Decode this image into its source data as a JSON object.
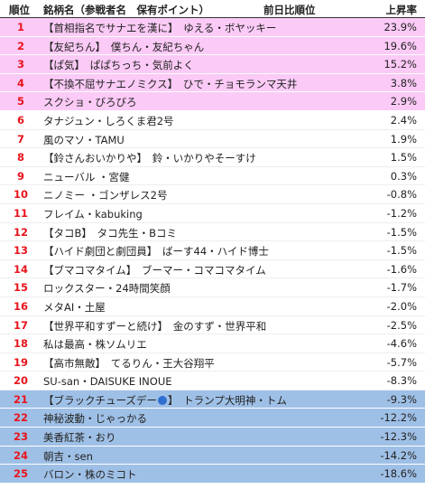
{
  "header": {
    "rank": "順位",
    "name": "銘柄名（参戦者名　保有ポイント）",
    "prev": "前日比順位",
    "change": "上昇率"
  },
  "rows": [
    {
      "rank": "1",
      "name": "【首相指名でサナエを漢に】　ゆえる・ボヤッキー",
      "change": "23.9%"
    },
    {
      "rank": "2",
      "name": "【友紀ちん】　僕ちん・友紀ちゃん",
      "change": "19.6%"
    },
    {
      "rank": "3",
      "name": "【ぱ気】　ぱぱちっち・気前よく",
      "change": "15.2%"
    },
    {
      "rank": "4",
      "name": "【不換不屈サナエノミクス】　ひで・チョモランマ天井",
      "change": "3.8%"
    },
    {
      "rank": "5",
      "name": "スクショ・びろびろ",
      "change": "2.9%"
    },
    {
      "rank": "6",
      "name": "タナジュン・しろくま君2号",
      "change": "2.4%"
    },
    {
      "rank": "7",
      "name": "風のマソ・TAMU",
      "change": "1.9%"
    },
    {
      "rank": "8",
      "name": "【鈴さんおいかりや】　鈴・いかりやそーすけ",
      "change": "1.5%"
    },
    {
      "rank": "9",
      "name": "ニューバル ・宮健",
      "change": "0.3%"
    },
    {
      "rank": "10",
      "name": "ニノミー ・ゴンザレス2号",
      "change": "-0.8%"
    },
    {
      "rank": "11",
      "name": "フレイム・kabuking",
      "change": "-1.2%"
    },
    {
      "rank": "12",
      "name": "【タコB】　タコ先生・Bコミ",
      "change": "-1.5%"
    },
    {
      "rank": "13",
      "name": "【ハイド劇団と劇団員】　ばーす44・ハイド博士",
      "change": "-1.5%"
    },
    {
      "rank": "14",
      "name": "【ブマコマタイム】　ブーマー・コマコマタイム",
      "change": "-1.6%"
    },
    {
      "rank": "15",
      "name": "ロックスター・24時間笑顔",
      "change": "-1.7%"
    },
    {
      "rank": "16",
      "name": "メタAI・土屋",
      "change": "-2.0%"
    },
    {
      "rank": "17",
      "name": "【世界平和すずーと続け】　金のすず・世界平和",
      "change": "-2.5%"
    },
    {
      "rank": "18",
      "name": "私は最高・株ソムリエ",
      "change": "-4.6%"
    },
    {
      "rank": "19",
      "name": "【高市無敵】　てるりん・王大谷翔平",
      "change": "-5.7%"
    },
    {
      "rank": "20",
      "name": "SU-san・DAISUKE INOUE",
      "change": "-8.3%"
    },
    {
      "rank": "21",
      "name": "【ブラックチューズデー",
      "name_rest": "】　トランプ大明神・トム",
      "change": "-9.3%"
    },
    {
      "rank": "22",
      "name": "神秘波動・じゃっかる",
      "change": "-12.2%"
    },
    {
      "rank": "23",
      "name": "美香紅茶・おり",
      "change": "-12.3%"
    },
    {
      "rank": "24",
      "name": "朝吉・sen",
      "change": "-14.2%"
    },
    {
      "rank": "25",
      "name": "バロン・株のミコト",
      "change": "-18.6%"
    }
  ]
}
